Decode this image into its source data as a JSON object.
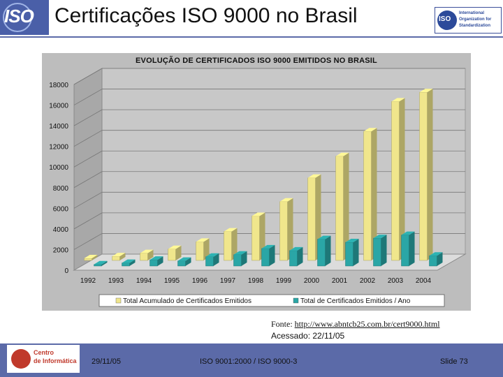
{
  "header": {
    "title": "Certificações ISO 9000 no Brasil",
    "iso_left_text": "ISO",
    "iso_right_badge": "ISO",
    "iso_right_org": "International Organization for Standardization"
  },
  "chart_data": {
    "type": "bar",
    "title": "EVOLUÇÃO DE CERTIFICADOS ISO 9000 EMITIDOS NO BRASIL",
    "categories": [
      "1992",
      "1993",
      "1994",
      "1995",
      "1996",
      "1997",
      "1998",
      "1999",
      "2000",
      "2001",
      "2002",
      "2003",
      "2004"
    ],
    "series": [
      {
        "name": "Total Acumulado de Certificados Emitidos",
        "color": "#f0e68c",
        "values": [
          200,
          400,
          700,
          1100,
          1800,
          2800,
          4300,
          5700,
          8000,
          10100,
          12500,
          15400,
          16300
        ]
      },
      {
        "name": "Total de Certificados Emitidos / Ano",
        "color": "#2aa6a6",
        "values": [
          150,
          300,
          600,
          500,
          900,
          1100,
          1700,
          1500,
          2600,
          2300,
          2700,
          3000,
          1000
        ]
      }
    ],
    "yticks": [
      "0",
      "2000",
      "4000",
      "6000",
      "8000",
      "10000",
      "12000",
      "14000",
      "16000",
      "18000"
    ],
    "ylim": [
      0,
      18000
    ],
    "legend": "bottom",
    "grid": true
  },
  "source": {
    "label": "Fonte: ",
    "url": "http://www.abntcb25.com.br/cert9000.html",
    "accessed": "Acessado: 22/11/05"
  },
  "footer": {
    "logo_line1": "Centro",
    "logo_line2": "de Informática",
    "date": "29/11/05",
    "middle": "ISO 9001:2000 / ISO 9000-3",
    "slide": "Slide 73"
  }
}
